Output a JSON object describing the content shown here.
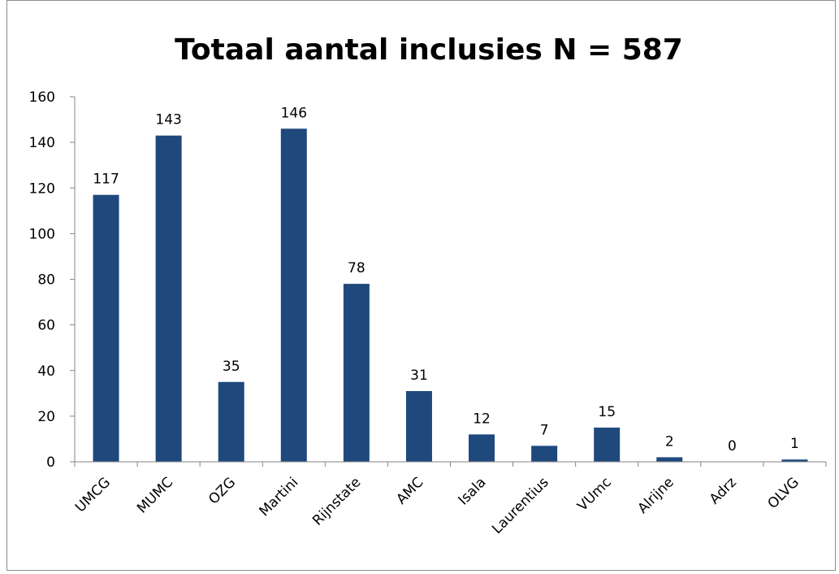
{
  "chart_data": {
    "type": "bar",
    "title": "Totaal aantal inclusies N = 587",
    "xlabel": "",
    "ylabel": "",
    "categories": [
      "UMCG",
      "MUMC",
      "OZG",
      "Martini",
      "Rijnstate",
      "AMC",
      "Isala",
      "Laurentius",
      "VUmc",
      "Alrijne",
      "Adrz",
      "OLVG"
    ],
    "values": [
      117,
      143,
      35,
      146,
      78,
      31,
      12,
      7,
      15,
      2,
      0,
      1
    ],
    "data_labels": [
      "117",
      "143",
      "35",
      "146",
      "78",
      "31",
      "12",
      "7",
      "15",
      "2",
      "0",
      "1"
    ],
    "ylim": [
      0,
      160
    ],
    "yticks": [
      "0",
      "20",
      "40",
      "60",
      "80",
      "100",
      "120",
      "140",
      "160"
    ],
    "grid": false,
    "legend": "none",
    "bar_color": "#1f497d"
  }
}
